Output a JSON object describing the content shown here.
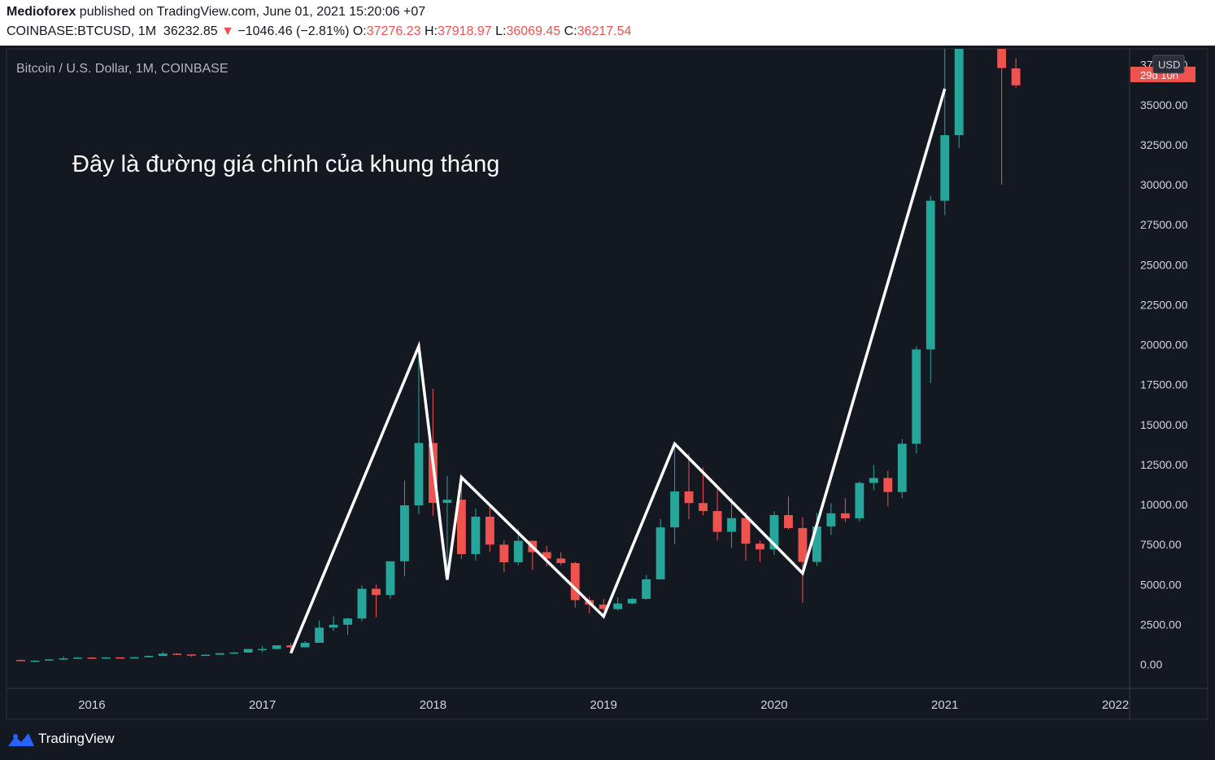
{
  "header": {
    "publisher": "Medioforex",
    "published_text": " published on TradingView.com, June 01, 2021 15:20:06 +07",
    "symbol": "COINBASE:BTCUSD, 1M",
    "last": "36232.85",
    "change_arrow": "▼",
    "change": "−1046.46 (−2.81%)",
    "o_label": "O:",
    "o_value": "37276.23",
    "h_label": "H:",
    "h_value": "37918.97",
    "l_label": "L:",
    "l_value": "36069.45",
    "c_label": "C:",
    "c_value": "36217.54"
  },
  "footer": {
    "brand": "TradingView"
  },
  "colors": {
    "background": "#141821",
    "bull": "#26a69a",
    "bear": "#ef5350",
    "text": "#d1d4dc",
    "line": "#ffffff",
    "grid": "#2a2e39"
  },
  "chart_data": {
    "type": "candlestick",
    "title": "Bitcoin / U.S. Dollar, 1M, COINBASE",
    "annotation": "Đây là đường giá chính của khung tháng",
    "currency_label": "USD",
    "last_price_label": "29d 10h",
    "ylim": [
      -1500,
      38500
    ],
    "xlim": [
      "2015-07",
      "2022-02"
    ],
    "y_ticks": [
      "0.00",
      "2500.00",
      "5000.00",
      "7500.00",
      "10000.00",
      "12500.00",
      "15000.00",
      "17500.00",
      "20000.00",
      "22500.00",
      "25000.00",
      "27500.00",
      "30000.00",
      "32500.00",
      "35000.00",
      "37500.00"
    ],
    "x_ticks": [
      {
        "label": "2016",
        "t": "2016-01"
      },
      {
        "label": "2017",
        "t": "2017-01"
      },
      {
        "label": "2018",
        "t": "2018-01"
      },
      {
        "label": "2019",
        "t": "2019-01"
      },
      {
        "label": "2020",
        "t": "2020-01"
      },
      {
        "label": "2021",
        "t": "2021-01"
      },
      {
        "label": "2022",
        "t": "2022-01"
      }
    ],
    "candles": [
      {
        "t": "2015-08",
        "o": 280,
        "h": 290,
        "l": 200,
        "c": 230
      },
      {
        "t": "2015-09",
        "o": 230,
        "h": 245,
        "l": 225,
        "c": 236
      },
      {
        "t": "2015-10",
        "o": 236,
        "h": 330,
        "l": 235,
        "c": 312
      },
      {
        "t": "2015-11",
        "o": 312,
        "h": 500,
        "l": 300,
        "c": 375
      },
      {
        "t": "2015-12",
        "o": 375,
        "h": 470,
        "l": 350,
        "c": 430
      },
      {
        "t": "2016-01",
        "o": 430,
        "h": 460,
        "l": 350,
        "c": 368
      },
      {
        "t": "2016-02",
        "o": 368,
        "h": 445,
        "l": 360,
        "c": 437
      },
      {
        "t": "2016-03",
        "o": 437,
        "h": 440,
        "l": 400,
        "c": 416
      },
      {
        "t": "2016-04",
        "o": 416,
        "h": 470,
        "l": 410,
        "c": 448
      },
      {
        "t": "2016-05",
        "o": 448,
        "h": 550,
        "l": 440,
        "c": 530
      },
      {
        "t": "2016-06",
        "o": 530,
        "h": 780,
        "l": 520,
        "c": 673
      },
      {
        "t": "2016-07",
        "o": 673,
        "h": 700,
        "l": 590,
        "c": 624
      },
      {
        "t": "2016-08",
        "o": 624,
        "h": 620,
        "l": 470,
        "c": 573
      },
      {
        "t": "2016-09",
        "o": 573,
        "h": 615,
        "l": 570,
        "c": 608
      },
      {
        "t": "2016-10",
        "o": 608,
        "h": 720,
        "l": 605,
        "c": 700
      },
      {
        "t": "2016-11",
        "o": 700,
        "h": 760,
        "l": 690,
        "c": 745
      },
      {
        "t": "2016-12",
        "o": 745,
        "h": 970,
        "l": 740,
        "c": 965
      },
      {
        "t": "2017-01",
        "o": 965,
        "h": 1150,
        "l": 750,
        "c": 965
      },
      {
        "t": "2017-02",
        "o": 965,
        "h": 1200,
        "l": 920,
        "c": 1190
      },
      {
        "t": "2017-03",
        "o": 1190,
        "h": 1350,
        "l": 890,
        "c": 1070
      },
      {
        "t": "2017-04",
        "o": 1070,
        "h": 1450,
        "l": 1070,
        "c": 1350
      },
      {
        "t": "2017-05",
        "o": 1350,
        "h": 2750,
        "l": 1350,
        "c": 2300
      },
      {
        "t": "2017-06",
        "o": 2300,
        "h": 3000,
        "l": 2100,
        "c": 2480
      },
      {
        "t": "2017-07",
        "o": 2480,
        "h": 2900,
        "l": 1850,
        "c": 2870
      },
      {
        "t": "2017-08",
        "o": 2870,
        "h": 4950,
        "l": 2700,
        "c": 4730
      },
      {
        "t": "2017-09",
        "o": 4730,
        "h": 5000,
        "l": 2950,
        "c": 4340
      },
      {
        "t": "2017-10",
        "o": 4340,
        "h": 6450,
        "l": 4100,
        "c": 6450
      },
      {
        "t": "2017-11",
        "o": 6450,
        "h": 11500,
        "l": 5500,
        "c": 9950
      },
      {
        "t": "2017-12",
        "o": 9950,
        "h": 19900,
        "l": 9400,
        "c": 13850
      },
      {
        "t": "2018-01",
        "o": 13850,
        "h": 17250,
        "l": 9300,
        "c": 10100
      },
      {
        "t": "2018-02",
        "o": 10100,
        "h": 11800,
        "l": 6000,
        "c": 10300
      },
      {
        "t": "2018-03",
        "o": 10300,
        "h": 11700,
        "l": 6600,
        "c": 6900
      },
      {
        "t": "2018-04",
        "o": 6900,
        "h": 9750,
        "l": 6500,
        "c": 9240
      },
      {
        "t": "2018-05",
        "o": 9240,
        "h": 10000,
        "l": 7050,
        "c": 7490
      },
      {
        "t": "2018-06",
        "o": 7490,
        "h": 7750,
        "l": 5770,
        "c": 6390
      },
      {
        "t": "2018-07",
        "o": 6390,
        "h": 8480,
        "l": 6200,
        "c": 7730
      },
      {
        "t": "2018-08",
        "o": 7730,
        "h": 7750,
        "l": 5900,
        "c": 7020
      },
      {
        "t": "2018-09",
        "o": 7020,
        "h": 7420,
        "l": 6140,
        "c": 6620
      },
      {
        "t": "2018-10",
        "o": 6620,
        "h": 7000,
        "l": 6200,
        "c": 6340
      },
      {
        "t": "2018-11",
        "o": 6340,
        "h": 6400,
        "l": 3560,
        "c": 4020
      },
      {
        "t": "2018-12",
        "o": 4020,
        "h": 4240,
        "l": 3200,
        "c": 3740
      },
      {
        "t": "2019-01",
        "o": 3740,
        "h": 4100,
        "l": 3350,
        "c": 3460
      },
      {
        "t": "2019-02",
        "o": 3460,
        "h": 4200,
        "l": 3370,
        "c": 3810
      },
      {
        "t": "2019-03",
        "o": 3810,
        "h": 4170,
        "l": 3750,
        "c": 4100
      },
      {
        "t": "2019-04",
        "o": 4100,
        "h": 5600,
        "l": 4050,
        "c": 5320
      },
      {
        "t": "2019-05",
        "o": 5320,
        "h": 9100,
        "l": 5300,
        "c": 8570
      },
      {
        "t": "2019-06",
        "o": 8570,
        "h": 13880,
        "l": 7500,
        "c": 10820
      },
      {
        "t": "2019-07",
        "o": 10820,
        "h": 13200,
        "l": 9080,
        "c": 10090
      },
      {
        "t": "2019-08",
        "o": 10090,
        "h": 12320,
        "l": 9320,
        "c": 9590
      },
      {
        "t": "2019-09",
        "o": 9590,
        "h": 10950,
        "l": 7750,
        "c": 8290
      },
      {
        "t": "2019-10",
        "o": 8290,
        "h": 10400,
        "l": 7300,
        "c": 9150
      },
      {
        "t": "2019-11",
        "o": 9150,
        "h": 9500,
        "l": 6500,
        "c": 7550
      },
      {
        "t": "2019-12",
        "o": 7550,
        "h": 7750,
        "l": 6420,
        "c": 7190
      },
      {
        "t": "2020-01",
        "o": 7190,
        "h": 9580,
        "l": 6850,
        "c": 9340
      },
      {
        "t": "2020-02",
        "o": 9340,
        "h": 10500,
        "l": 8450,
        "c": 8530
      },
      {
        "t": "2020-03",
        "o": 8530,
        "h": 9200,
        "l": 3850,
        "c": 6410
      },
      {
        "t": "2020-04",
        "o": 6410,
        "h": 9470,
        "l": 6150,
        "c": 8630
      },
      {
        "t": "2020-05",
        "o": 8630,
        "h": 10080,
        "l": 8100,
        "c": 9450
      },
      {
        "t": "2020-06",
        "o": 9450,
        "h": 10400,
        "l": 8900,
        "c": 9140
      },
      {
        "t": "2020-07",
        "o": 9140,
        "h": 11450,
        "l": 8950,
        "c": 11350
      },
      {
        "t": "2020-08",
        "o": 11350,
        "h": 12480,
        "l": 10900,
        "c": 11660
      },
      {
        "t": "2020-09",
        "o": 11660,
        "h": 12100,
        "l": 9880,
        "c": 10780
      },
      {
        "t": "2020-10",
        "o": 10780,
        "h": 14100,
        "l": 10400,
        "c": 13800
      },
      {
        "t": "2020-11",
        "o": 13800,
        "h": 19900,
        "l": 13200,
        "c": 19700
      },
      {
        "t": "2020-12",
        "o": 19700,
        "h": 29300,
        "l": 17600,
        "c": 29000
      },
      {
        "t": "2021-01",
        "o": 29000,
        "h": 41950,
        "l": 28100,
        "c": 33100
      },
      {
        "t": "2021-02",
        "o": 33100,
        "h": 58350,
        "l": 32300,
        "c": 45200
      },
      {
        "t": "2021-05",
        "o": 57700,
        "h": 59500,
        "l": 30000,
        "c": 37300
      },
      {
        "t": "2021-06",
        "o": 37276.23,
        "h": 37918.97,
        "l": 36069.45,
        "c": 36217.54
      }
    ],
    "trend_line": [
      {
        "t": "2017-03",
        "v": 700
      },
      {
        "t": "2017-12",
        "v": 19900
      },
      {
        "t": "2018-02",
        "v": 5300
      },
      {
        "t": "2018-03",
        "v": 11700
      },
      {
        "t": "2019-01",
        "v": 3000
      },
      {
        "t": "2019-06",
        "v": 13800
      },
      {
        "t": "2020-03",
        "v": 5700
      },
      {
        "t": "2021-01",
        "v": 36000
      }
    ]
  }
}
